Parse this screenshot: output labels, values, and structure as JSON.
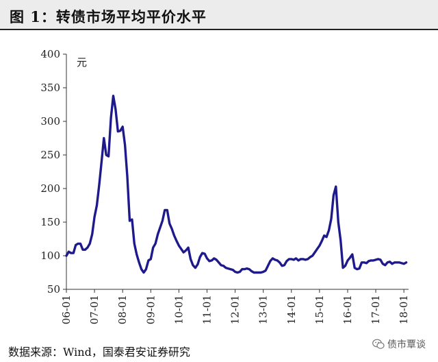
{
  "header": {
    "title": "图 1：转债市场平均平价水平"
  },
  "footer": {
    "source": "数据来源：Wind，国泰君安证券研究",
    "badge_label": "债市覃谈",
    "badge_icon": "wechat-icon"
  },
  "chart_data": {
    "type": "line",
    "title": "图 1：转债市场平均平价水平",
    "unit_label": "元",
    "ylim": [
      50,
      400
    ],
    "yticks": [
      50,
      100,
      150,
      200,
      250,
      300,
      350,
      400
    ],
    "xticks": [
      "06-01",
      "07-01",
      "08-01",
      "09-01",
      "10-01",
      "11-01",
      "12-01",
      "13-01",
      "14-01",
      "15-01",
      "16-01",
      "17-01",
      "18-01"
    ],
    "grid": false,
    "line_color": "#1f1a8c",
    "series": [
      {
        "x": [
          "06-01",
          "06-02",
          "06-03",
          "06-04",
          "06-05",
          "06-06",
          "06-07",
          "06-08",
          "06-09",
          "06-10",
          "06-11",
          "06-12",
          "07-01",
          "07-02",
          "07-03",
          "07-04",
          "07-05",
          "07-06",
          "07-07",
          "07-08",
          "07-09",
          "07-10",
          "07-11",
          "07-12",
          "08-01",
          "08-02",
          "08-03",
          "08-04",
          "08-05",
          "08-06",
          "08-07",
          "08-08",
          "08-09",
          "08-10",
          "08-11",
          "08-12",
          "09-01",
          "09-02",
          "09-03",
          "09-04",
          "09-05",
          "09-06",
          "09-07",
          "09-08",
          "09-09",
          "09-10",
          "09-11",
          "09-12",
          "10-01",
          "10-02",
          "10-03",
          "10-04",
          "10-05",
          "10-06",
          "10-07",
          "10-08",
          "10-09",
          "10-10",
          "10-11",
          "10-12",
          "11-01",
          "11-02",
          "11-03",
          "11-04",
          "11-05",
          "11-06",
          "11-07",
          "11-08",
          "11-09",
          "11-10",
          "11-11",
          "11-12",
          "12-01",
          "12-02",
          "12-03",
          "12-04",
          "12-05",
          "12-06",
          "12-07",
          "12-08",
          "12-09",
          "12-10",
          "12-11",
          "12-12",
          "13-01",
          "13-02",
          "13-03",
          "13-04",
          "13-05",
          "13-06",
          "13-07",
          "13-08",
          "13-09",
          "13-10",
          "13-11",
          "13-12",
          "14-01",
          "14-02",
          "14-03",
          "14-04",
          "14-05",
          "14-06",
          "14-07",
          "14-08",
          "14-09",
          "14-10",
          "14-11",
          "14-12",
          "15-01",
          "15-02",
          "15-03",
          "15-04",
          "15-05",
          "15-06",
          "15-07",
          "15-08",
          "15-09",
          "15-10",
          "15-11",
          "15-12",
          "16-01",
          "16-02",
          "16-03",
          "16-04",
          "16-05",
          "16-06",
          "16-07",
          "16-08",
          "16-09",
          "16-10",
          "16-11",
          "16-12",
          "17-01",
          "17-02",
          "17-03",
          "17-04",
          "17-05",
          "17-06",
          "17-07",
          "17-08",
          "17-09",
          "17-10",
          "17-11",
          "17-12",
          "18-01",
          "18-02"
        ],
        "values": [
          100,
          106,
          104,
          104,
          116,
          118,
          118,
          109,
          109,
          112,
          118,
          132,
          158,
          175,
          205,
          240,
          275,
          250,
          248,
          305,
          338,
          318,
          285,
          286,
          292,
          265,
          218,
          152,
          154,
          118,
          102,
          90,
          80,
          75,
          80,
          93,
          95,
          112,
          118,
          132,
          142,
          152,
          168,
          168,
          148,
          140,
          130,
          122,
          115,
          110,
          105,
          108,
          112,
          95,
          86,
          82,
          87,
          98,
          104,
          103,
          96,
          92,
          93,
          96,
          94,
          90,
          86,
          85,
          82,
          81,
          80,
          79,
          76,
          75,
          76,
          80,
          80,
          81,
          80,
          77,
          75,
          75,
          75,
          75,
          76,
          78,
          85,
          92,
          96,
          94,
          93,
          90,
          85,
          86,
          92,
          95,
          95,
          94,
          96,
          93,
          95,
          95,
          94,
          95,
          98,
          100,
          105,
          110,
          115,
          122,
          130,
          128,
          138,
          155,
          190,
          203,
          150,
          123,
          82,
          85,
          93,
          97,
          102,
          82,
          80,
          81,
          90,
          90,
          89,
          92,
          93,
          93,
          94,
          95,
          94,
          88,
          86,
          90,
          91,
          88,
          90,
          90,
          90,
          89,
          88,
          90
        ]
      }
    ]
  }
}
